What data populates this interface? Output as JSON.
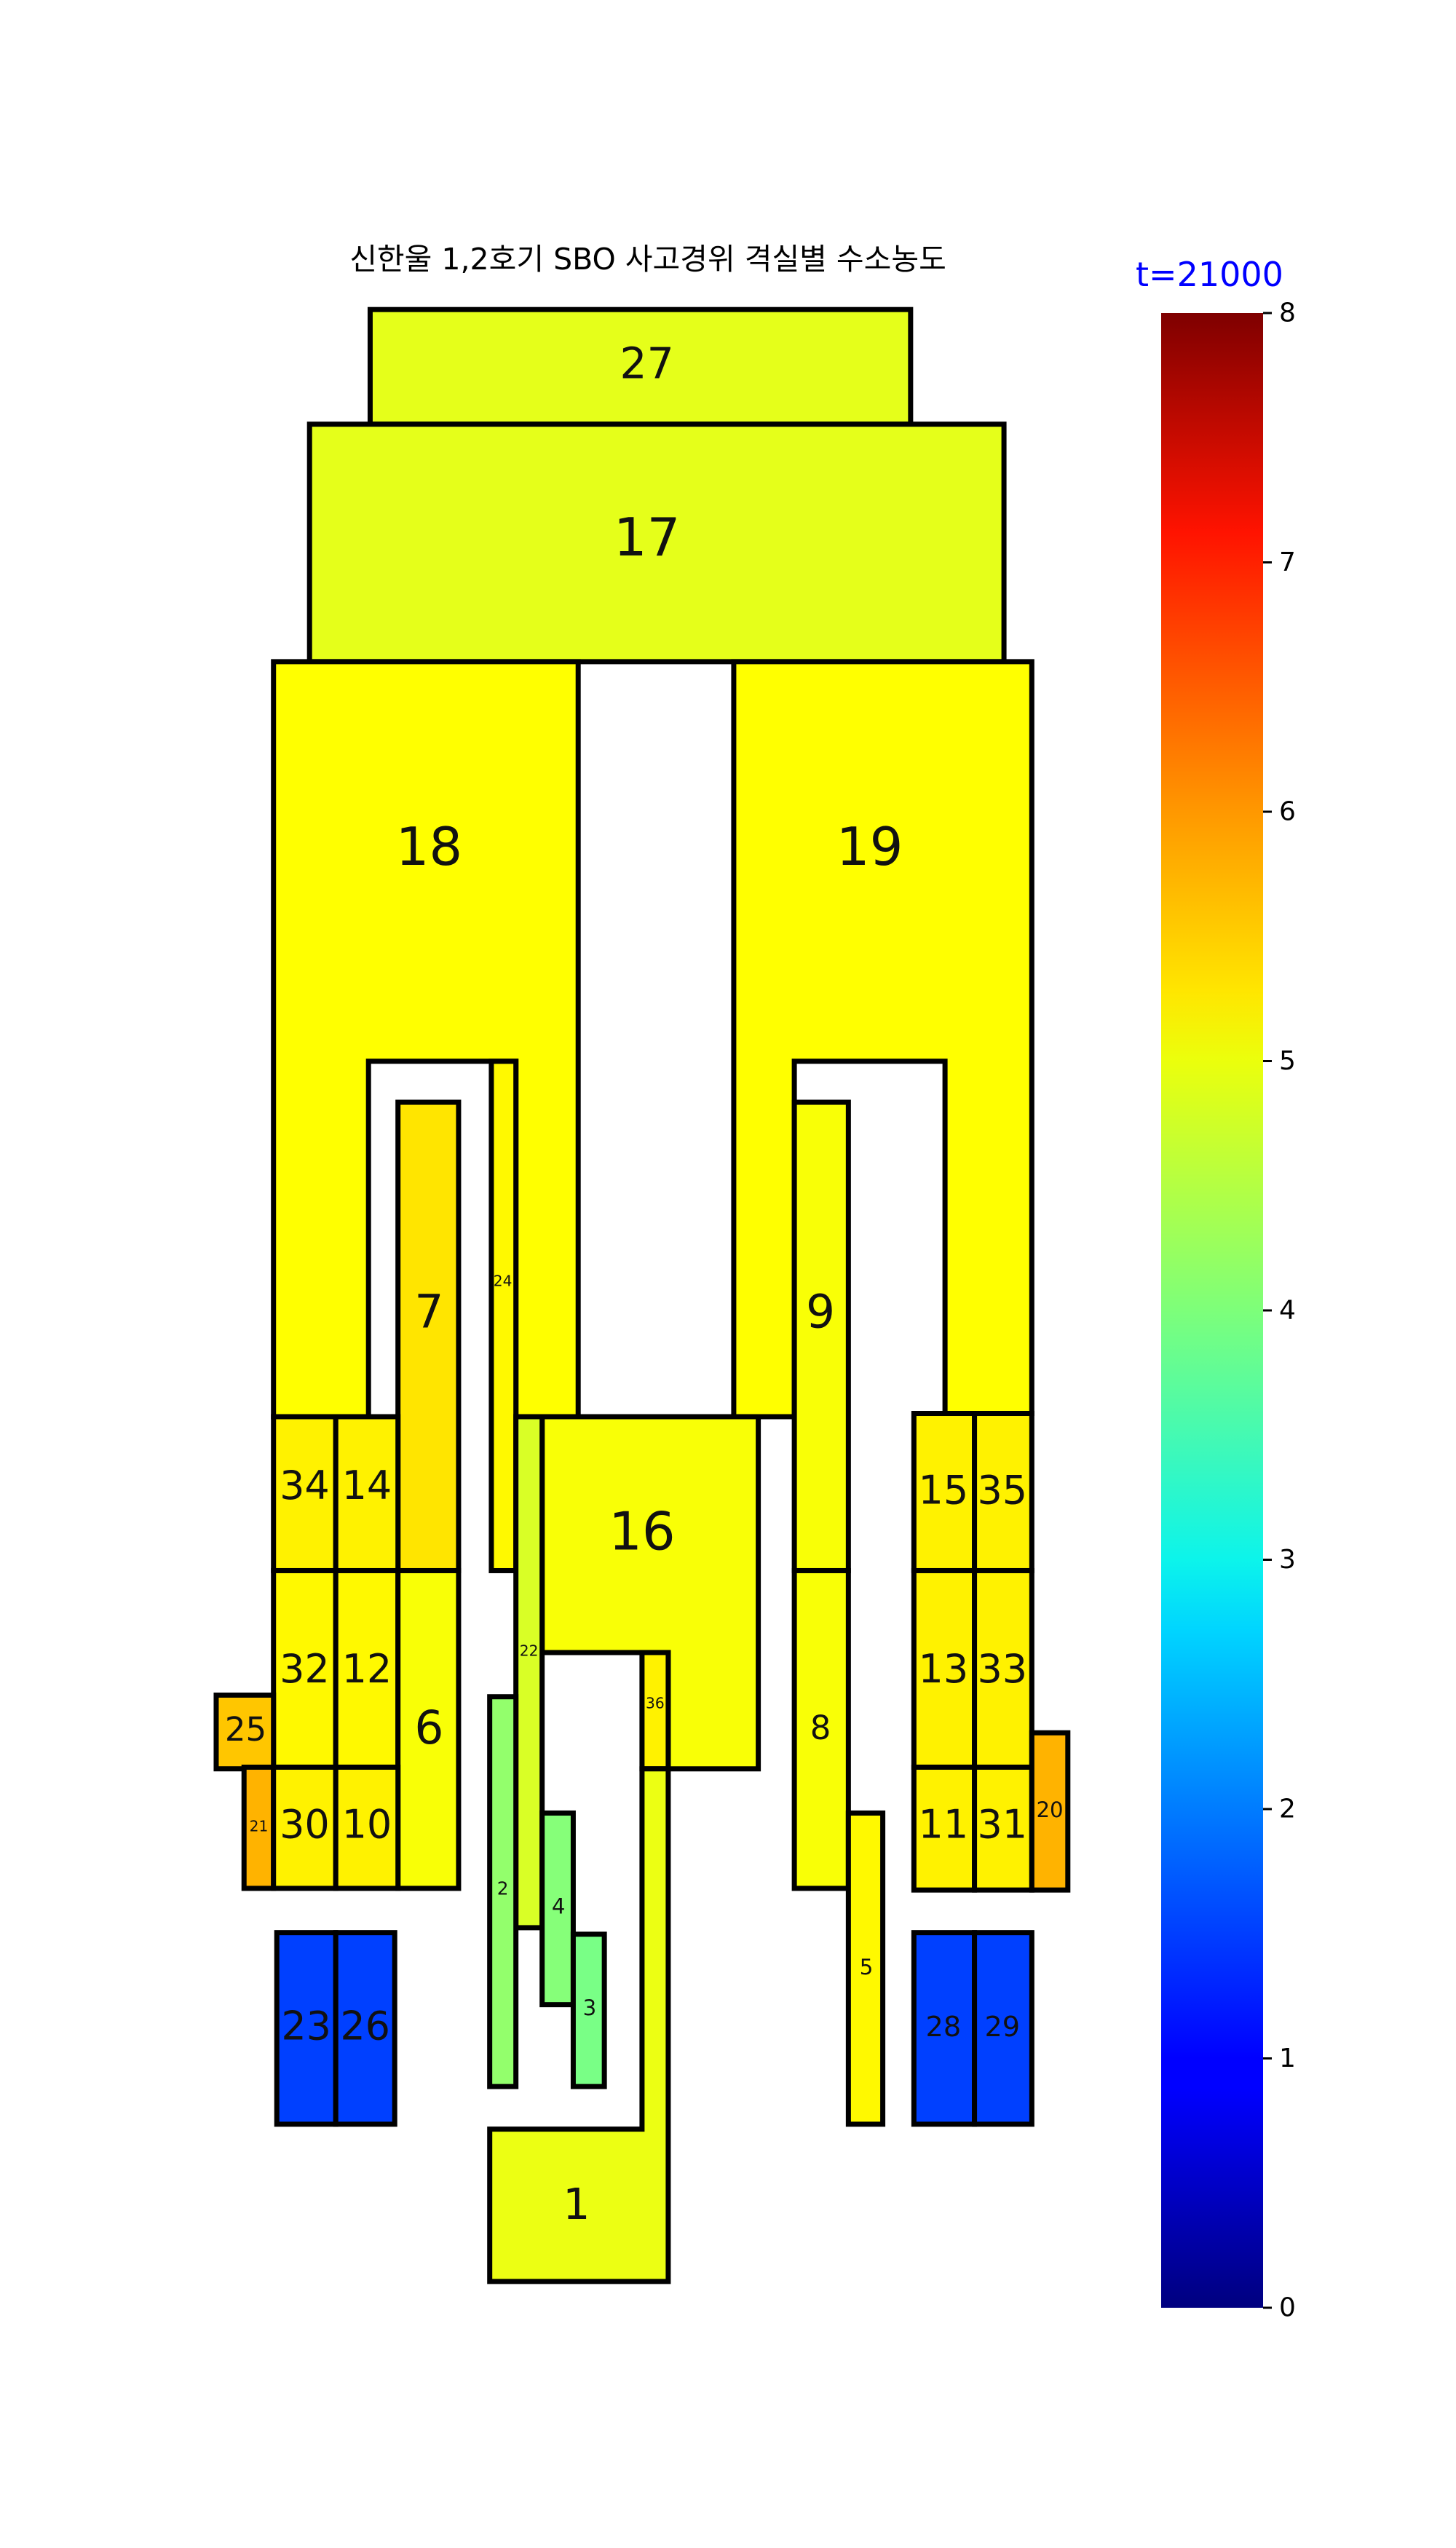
{
  "title": "신한울 1,2호기 SBO 사고경위 격실별 수소농도",
  "time_label": "t=21000",
  "time_label_color": "#0000ff",
  "colorbar": {
    "colormap": "jet",
    "min": 0,
    "max": 8,
    "ticks": [
      "0",
      "1",
      "2",
      "3",
      "4",
      "5",
      "6",
      "7",
      "8"
    ]
  },
  "compartments": [
    {
      "id": "1",
      "value": 4.85
    },
    {
      "id": "2",
      "value": 4.15
    },
    {
      "id": "3",
      "value": 3.95
    },
    {
      "id": "4",
      "value": 4.05
    },
    {
      "id": "5",
      "value": 5.05
    },
    {
      "id": "6",
      "value": 4.95
    },
    {
      "id": "7",
      "value": 5.2
    },
    {
      "id": "8",
      "value": 4.95
    },
    {
      "id": "9",
      "value": 4.95
    },
    {
      "id": "10",
      "value": 5.1
    },
    {
      "id": "11",
      "value": 5.1
    },
    {
      "id": "12",
      "value": 5.05
    },
    {
      "id": "13",
      "value": 5.1
    },
    {
      "id": "14",
      "value": 5.1
    },
    {
      "id": "15",
      "value": 5.1
    },
    {
      "id": "16",
      "value": 4.95
    },
    {
      "id": "17",
      "value": 4.8
    },
    {
      "id": "18",
      "value": 5.0
    },
    {
      "id": "19",
      "value": 5.0
    },
    {
      "id": "20",
      "value": 5.6
    },
    {
      "id": "21",
      "value": 5.6
    },
    {
      "id": "22",
      "value": 4.7
    },
    {
      "id": "23",
      "value": 1.5
    },
    {
      "id": "24",
      "value": 5.05
    },
    {
      "id": "25",
      "value": 5.45
    },
    {
      "id": "26",
      "value": 1.5
    },
    {
      "id": "27",
      "value": 4.8
    },
    {
      "id": "28",
      "value": 1.5
    },
    {
      "id": "29",
      "value": 1.5
    },
    {
      "id": "30",
      "value": 5.1
    },
    {
      "id": "31",
      "value": 5.1
    },
    {
      "id": "32",
      "value": 5.05
    },
    {
      "id": "33",
      "value": 5.1
    },
    {
      "id": "34",
      "value": 5.1
    },
    {
      "id": "35",
      "value": 5.1
    },
    {
      "id": "36",
      "value": 5.1
    }
  ]
}
